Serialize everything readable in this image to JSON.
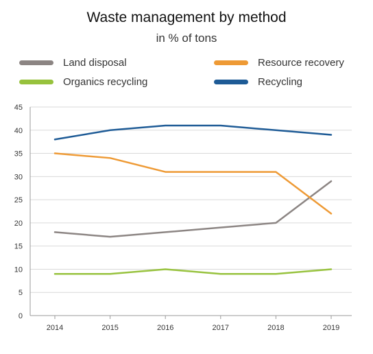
{
  "chart_data": {
    "type": "line",
    "title": "Waste management by method",
    "subtitle": "in % of tons",
    "x": [
      "2014",
      "2015",
      "2016",
      "2017",
      "2018",
      "2019"
    ],
    "ylim": [
      0,
      45
    ],
    "yticks": [
      0,
      5,
      10,
      15,
      20,
      25,
      30,
      35,
      40,
      45
    ],
    "grid": true,
    "legend_placement": "top",
    "series": [
      {
        "name": "Land disposal",
        "color": "#8c8583",
        "values": [
          18,
          17,
          18,
          19,
          20,
          29
        ]
      },
      {
        "name": "Resource recovery",
        "color": "#ee9a35",
        "values": [
          35,
          34,
          31,
          31,
          31,
          22
        ]
      },
      {
        "name": "Organics recycling",
        "color": "#97c23d",
        "values": [
          9,
          9,
          10,
          9,
          9,
          10
        ]
      },
      {
        "name": "Recycling",
        "color": "#1e5b96",
        "values": [
          38,
          40,
          41,
          41,
          40,
          39
        ]
      }
    ]
  }
}
